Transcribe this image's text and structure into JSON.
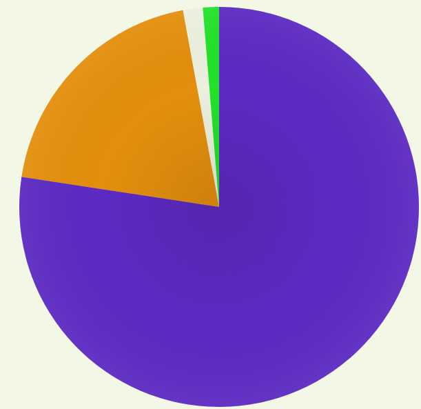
{
  "chart_data": {
    "type": "pie",
    "start_angle_deg": 90,
    "direction": "clockwise",
    "slices": [
      {
        "value": 77.4,
        "color": "#5e2bc6"
      },
      {
        "value": 19.7,
        "color": "#e8920d"
      },
      {
        "value": 1.6,
        "color": "#f0f5e2"
      },
      {
        "value": 1.3,
        "color": "#22e62b"
      }
    ],
    "title": "",
    "legend": "none"
  }
}
